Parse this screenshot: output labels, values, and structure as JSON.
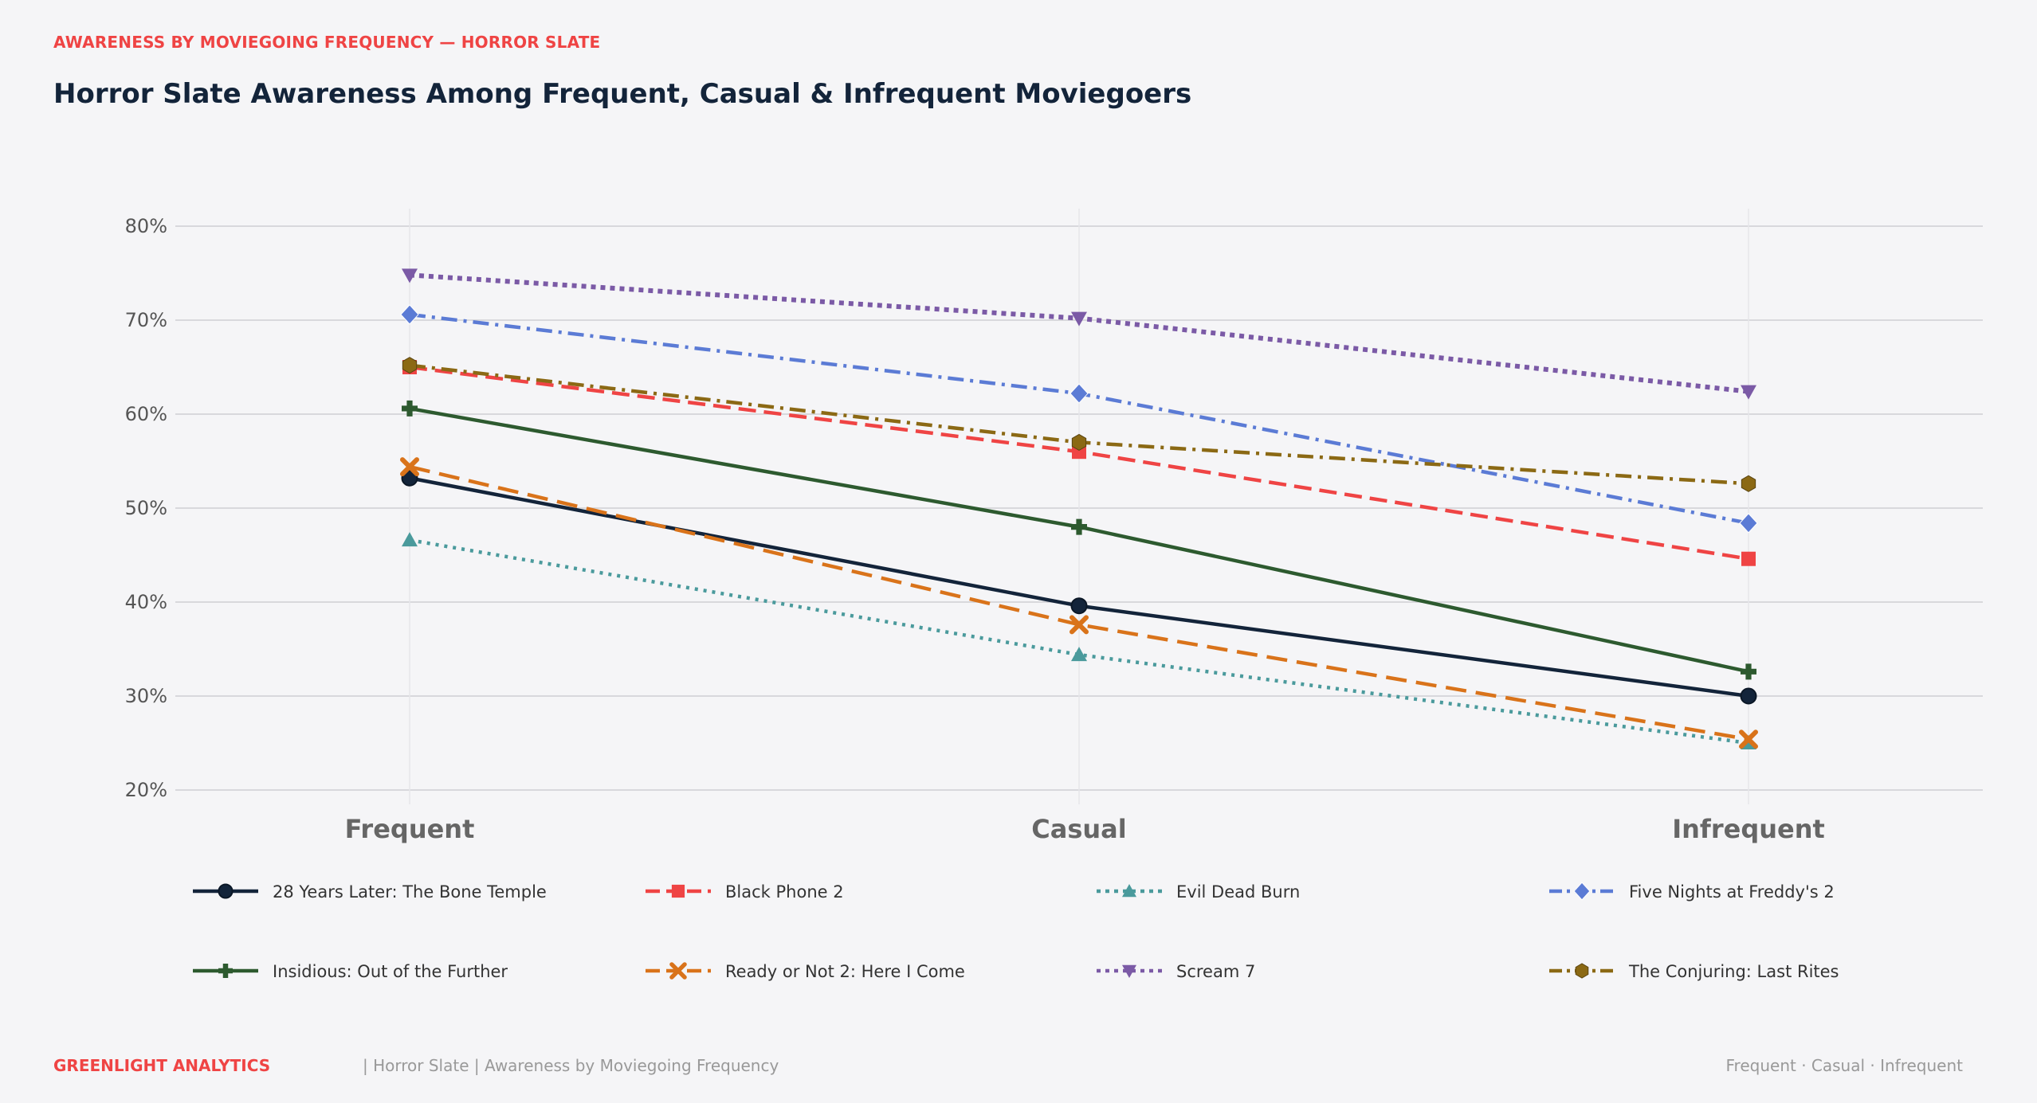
{
  "header": {
    "kicker": "AWARENESS BY MOVIEGOING FREQUENCY — HORROR SLATE",
    "title": "Horror Slate Awareness Among Frequent, Casual & Infrequent Moviegoers"
  },
  "footer": {
    "brand": "GREENLIGHT ANALYTICS",
    "meta": "|  Horror Slate  |  Awareness by Moviegoing Frequency",
    "right": "Frequent  ·  Casual  ·  Infrequent"
  },
  "chart_data": {
    "type": "line",
    "categories": [
      "Frequent",
      "Casual",
      "Infrequent"
    ],
    "ylim": [
      18,
      82
    ],
    "yticks": [
      20,
      30,
      40,
      50,
      60,
      70,
      80
    ],
    "ytick_labels": [
      "20%",
      "30%",
      "40%",
      "50%",
      "60%",
      "70%",
      "80%"
    ],
    "grid": true,
    "legend_position": "bottom",
    "series": [
      {
        "name": "28 Years Later: The Bone Temple",
        "values": [
          53.2,
          39.6,
          30.0
        ],
        "color": "#13243a",
        "dash": "solid",
        "marker": "circle"
      },
      {
        "name": "Black Phone 2",
        "values": [
          65.0,
          56.0,
          44.6
        ],
        "color": "#ef4444",
        "dash": "dashed",
        "marker": "square"
      },
      {
        "name": "Evil Dead Burn",
        "values": [
          46.6,
          34.4,
          25.0
        ],
        "color": "#4a9a9c",
        "dash": "dotted",
        "marker": "triangle-up"
      },
      {
        "name": "Five Nights at Freddy's 2",
        "values": [
          70.6,
          62.2,
          48.4
        ],
        "color": "#5b7bd5",
        "dash": "dashdot",
        "marker": "diamond"
      },
      {
        "name": "Insidious: Out of the Further",
        "values": [
          60.6,
          48.0,
          32.6
        ],
        "color": "#2d5a2f",
        "dash": "solid",
        "marker": "plus"
      },
      {
        "name": "Ready or Not 2: Here I Come",
        "values": [
          54.4,
          37.6,
          25.4
        ],
        "color": "#d9731a",
        "dash": "longdash",
        "marker": "x"
      },
      {
        "name": "Scream 7",
        "values": [
          74.8,
          70.2,
          62.4
        ],
        "color": "#7b5aa6",
        "dash": "densedot",
        "marker": "triangle-down"
      },
      {
        "name": "The Conjuring: Last Rites",
        "values": [
          65.2,
          57.0,
          52.6
        ],
        "color": "#8b6914",
        "dash": "dashdot",
        "marker": "hexagon"
      }
    ]
  }
}
